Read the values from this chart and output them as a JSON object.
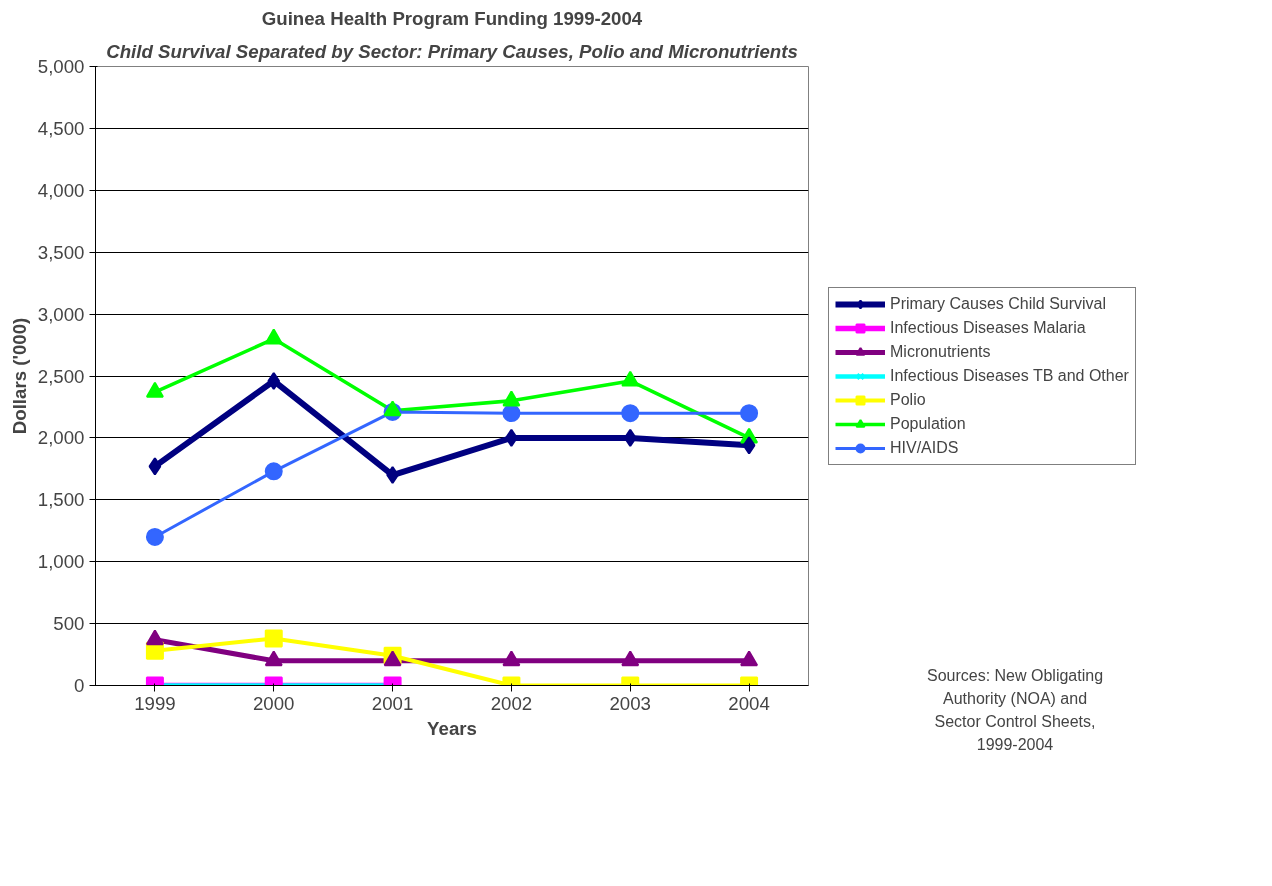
{
  "chart_data": {
    "type": "line",
    "title": "Guinea Health Program Funding 1999-2004",
    "subtitle": "Child Survival Separated by Sector: Primary Causes, Polio and Micronutrients",
    "xlabel": "Years",
    "ylabel": "Dollars ('000)",
    "categories": [
      "1999",
      "2000",
      "2001",
      "2002",
      "2003",
      "2004"
    ],
    "series": [
      {
        "name": "Primary Causes Child Survival",
        "color": "#000080",
        "marker": "diamond",
        "values": [
          1770,
          2460,
          1700,
          2000,
          2000,
          1940
        ]
      },
      {
        "name": "Infectious Diseases Malaria",
        "color": "#ff00ff",
        "marker": "square",
        "values": [
          0,
          0,
          0,
          null,
          null,
          null
        ]
      },
      {
        "name": "Micronutrients",
        "color": "#800080",
        "marker": "triangle",
        "values": [
          370,
          200,
          200,
          200,
          200,
          200
        ]
      },
      {
        "name": "Infectious Diseases TB and Other",
        "color": "#00ffff",
        "marker": "cross",
        "values": [
          0,
          0,
          0,
          null,
          null,
          null
        ]
      },
      {
        "name": "Polio",
        "color": "#ffff00",
        "marker": "square",
        "values": [
          280,
          380,
          240,
          0,
          0,
          0
        ]
      },
      {
        "name": "Population",
        "color": "#00ff00",
        "marker": "triangle",
        "values": [
          2370,
          2800,
          2220,
          2300,
          2460,
          2000
        ]
      },
      {
        "name": "HIV/AIDS",
        "color": "#3366ff",
        "marker": "circle",
        "values": [
          1200,
          1730,
          2210,
          2200,
          2200,
          2200
        ]
      }
    ],
    "ylim": [
      0,
      5000
    ],
    "yticks": [
      {
        "value": 0,
        "label": "0"
      },
      {
        "value": 500,
        "label": "500"
      },
      {
        "value": 1000,
        "label": "1,000"
      },
      {
        "value": 1500,
        "label": "1,500"
      },
      {
        "value": 2000,
        "label": "2,000"
      },
      {
        "value": 2500,
        "label": "2,500"
      },
      {
        "value": 3000,
        "label": "3,000"
      },
      {
        "value": 3500,
        "label": "3,500"
      },
      {
        "value": 4000,
        "label": "4,000"
      },
      {
        "value": 4500,
        "label": "4,500"
      },
      {
        "value": 5000,
        "label": "5,000"
      }
    ],
    "grid": "y",
    "legend": "right",
    "line_style": "solid",
    "annotations": [
      "Sources: New Obligating Authority (NOA) and Sector Control Sheets, 1999-2004"
    ]
  }
}
